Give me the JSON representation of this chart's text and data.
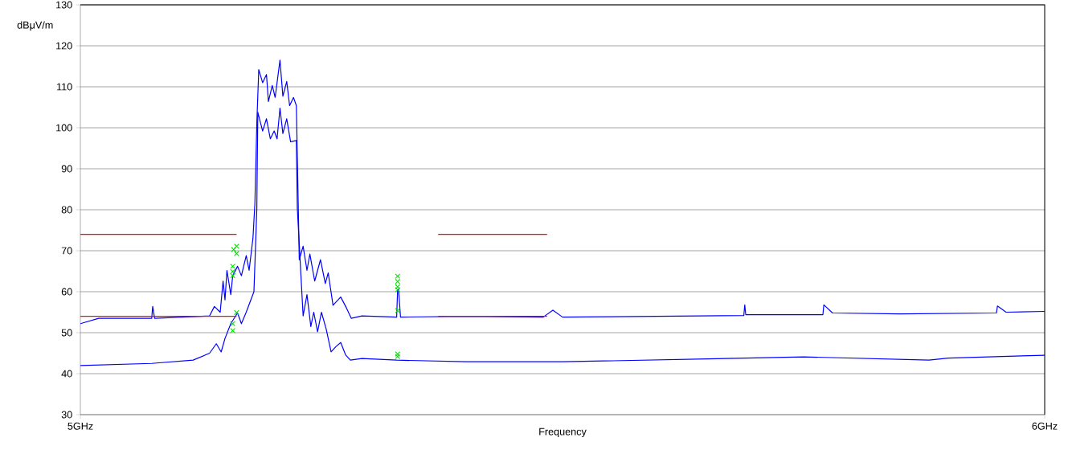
{
  "chart_data": {
    "type": "line",
    "xlabel": "Frequency",
    "ylabel": "dBμV/m",
    "xlim": [
      5,
      6
    ],
    "ylim": [
      30,
      130
    ],
    "xticks": [
      {
        "value": 5,
        "label": "5GHz"
      },
      {
        "value": 6,
        "label": "6GHz"
      }
    ],
    "yticks": [
      30,
      40,
      50,
      60,
      70,
      80,
      90,
      100,
      110,
      120,
      130
    ],
    "grid": "y",
    "series": [
      {
        "color": "#0000ff",
        "x": [
          5.0,
          5.019,
          5.074,
          5.075,
          5.077,
          5.134,
          5.139,
          5.145,
          5.148,
          5.15,
          5.152,
          5.156,
          5.158,
          5.163,
          5.167,
          5.172,
          5.175,
          5.179,
          5.181,
          5.183,
          5.185,
          5.189,
          5.193,
          5.195,
          5.199,
          5.202,
          5.207,
          5.21,
          5.214,
          5.217,
          5.221,
          5.224,
          5.226,
          5.227,
          5.231,
          5.235,
          5.238,
          5.243,
          5.249,
          5.254,
          5.257,
          5.262,
          5.27,
          5.276,
          5.281,
          5.292,
          5.328,
          5.329,
          5.33,
          5.332,
          5.4,
          5.48,
          5.49,
          5.5,
          5.688,
          5.689,
          5.69,
          5.77,
          5.771,
          5.78,
          5.85,
          5.95,
          5.951,
          5.96,
          6.0
        ],
        "values": [
          52.2,
          53.5,
          53.5,
          56.4,
          53.5,
          54.1,
          56.4,
          55,
          62.6,
          58,
          65.2,
          59.3,
          63.9,
          66.2,
          63.9,
          68.8,
          65.2,
          73.1,
          81.6,
          101.2,
          114.2,
          111,
          113,
          106.4,
          110.3,
          107.4,
          116.5,
          107.7,
          111.3,
          105.4,
          107.4,
          105.4,
          80.3,
          67.8,
          71.1,
          65.2,
          69.2,
          62.6,
          67.8,
          62,
          64.6,
          56.7,
          58.7,
          56,
          53.5,
          54.1,
          53.8,
          60.5,
          60.5,
          53.8,
          54,
          53.8,
          55.5,
          53.8,
          54.2,
          56.8,
          54.4,
          54.4,
          56.8,
          54.8,
          54.6,
          54.8,
          56.5,
          55,
          55.2
        ]
      },
      {
        "color": "#0000ff",
        "x": [
          5.0,
          5.074,
          5.117,
          5.134,
          5.141,
          5.146,
          5.15,
          5.156,
          5.163,
          5.167,
          5.172,
          5.18,
          5.183,
          5.184,
          5.189,
          5.193,
          5.197,
          5.201,
          5.204,
          5.207,
          5.21,
          5.214,
          5.218,
          5.224,
          5.225,
          5.231,
          5.235,
          5.239,
          5.242,
          5.246,
          5.25,
          5.255,
          5.26,
          5.265,
          5.27,
          5.275,
          5.28,
          5.292,
          5.328,
          5.4,
          5.5,
          5.65,
          5.75,
          5.88,
          5.9,
          6.0
        ],
        "values": [
          42,
          42.5,
          43.3,
          45,
          47.3,
          45.3,
          48.6,
          52.2,
          54.8,
          52.2,
          55,
          60,
          80.3,
          103.8,
          99.2,
          102.2,
          97.3,
          99.2,
          97.3,
          104.8,
          98.6,
          102.2,
          96.6,
          96.9,
          80.3,
          54.1,
          59.3,
          51.5,
          55,
          50.2,
          55,
          50.8,
          45.3,
          46.6,
          47.6,
          44.6,
          43.3,
          43.7,
          43.3,
          42.9,
          42.9,
          43.6,
          44.1,
          43.3,
          43.8,
          44.5
        ]
      },
      {
        "color": "#ff0000",
        "x": [
          5.0,
          5.162,
          5.27,
          5.371,
          5.484
        ],
        "values": [
          74,
          74,
          null,
          74,
          74
        ]
      },
      {
        "color": "#ff0000",
        "x": [
          5.0,
          5.162,
          5.27,
          5.371,
          5.484
        ],
        "values": [
          54,
          54,
          null,
          54,
          54
        ]
      },
      {
        "type": "scatter",
        "color": "#00e000",
        "marker": "cross",
        "x": [
          5.159,
          5.162,
          5.162,
          5.158,
          5.158,
          5.158,
          5.162,
          5.158,
          5.158,
          5.329,
          5.329,
          5.329,
          5.329,
          5.329,
          5.329,
          5.329
        ],
        "values": [
          70.3,
          71.1,
          69.3,
          66.2,
          64.9,
          63.9,
          54.9,
          52.2,
          50.5,
          63.8,
          62.5,
          61.2,
          60.5,
          55.4,
          44.8,
          44.2
        ]
      }
    ]
  }
}
